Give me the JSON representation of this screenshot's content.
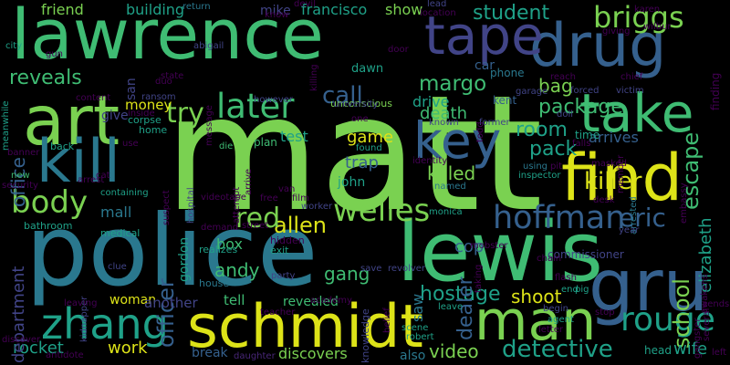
{
  "palette": {
    "background": "#000000",
    "yellow": "#dde318",
    "lime": "#7ad151",
    "green": "#3fbc73",
    "teal": "#1fa188",
    "cyan": "#2a788e",
    "blue": "#35608d",
    "indigo": "#414487",
    "purple": "#482677",
    "dark": "#440154"
  },
  "words": [
    "matt",
    "police",
    "lawrence",
    "lewis",
    "schmidt",
    "find",
    "art",
    "drug",
    "tape",
    "kill",
    "gru",
    "zhang",
    "take",
    "man",
    "body",
    "key",
    "later",
    "hoffman",
    "welles",
    "briggs",
    "rouge",
    "detective",
    "try",
    "school",
    "killer",
    "reveals",
    "allen",
    "student",
    "margo",
    "death",
    "room",
    "escape",
    "red",
    "call",
    "eric",
    "office",
    "officer",
    "hostage",
    "shoot",
    "package",
    "dealer",
    "pack",
    "killed",
    "bag",
    "video",
    "elizabeth",
    "game",
    "trap",
    "andy",
    "gang",
    "work",
    "rocket",
    "department",
    "cop",
    "discovers",
    "mall",
    "box",
    "saw",
    "wife",
    "friend",
    "building",
    "francisco",
    "show",
    "mike",
    "give",
    "drive",
    "money",
    "test",
    "john",
    "arrives",
    "woman",
    "revealed",
    "break",
    "tell",
    "another",
    "gordon",
    "also",
    "kent",
    "car",
    "phone",
    "dawn",
    "return",
    "devil",
    "lead",
    "karen",
    "wilbur",
    "city",
    "gun",
    "abigail",
    "state",
    "san",
    "duo",
    "ransom",
    "however",
    "unconscious",
    "corpse",
    "home",
    "back",
    "inside",
    "content",
    "plan",
    "die",
    "new",
    "security",
    "containing",
    "bathroom",
    "medical",
    "hidden",
    "exit",
    "party",
    "house",
    "daughter",
    "head",
    "knowledge",
    "scene",
    "robert",
    "begin",
    "agent",
    "commissioner",
    "mobster",
    "chain",
    "monica",
    "named",
    "worker",
    "found",
    "using",
    "inspector",
    "forced",
    "victim",
    "chief",
    "desk",
    "arrested",
    "doll",
    "garage",
    "former",
    "known",
    "time",
    "embassy",
    "finding",
    "giving",
    "location",
    "door",
    "killing",
    "university",
    "message",
    "clue",
    "kidnapper",
    "leaving",
    "meanwhile",
    "banner",
    "arrest",
    "use",
    "cat",
    "suspect",
    "hospital",
    "attempt",
    "arrive",
    "free",
    "film",
    "van",
    "videotape",
    "realizes",
    "demand",
    "street",
    "teacher",
    "academy",
    "save",
    "revolver",
    "belief",
    "taking",
    "letter",
    "end",
    "pig",
    "flash",
    "stop",
    "gangster",
    "several",
    "awakens",
    "sends",
    "leave",
    "discover",
    "antidote",
    "know",
    "one",
    "identity",
    "todd",
    "member",
    "pit",
    "masked",
    "year",
    "falls",
    "reach",
    "left"
  ]
}
